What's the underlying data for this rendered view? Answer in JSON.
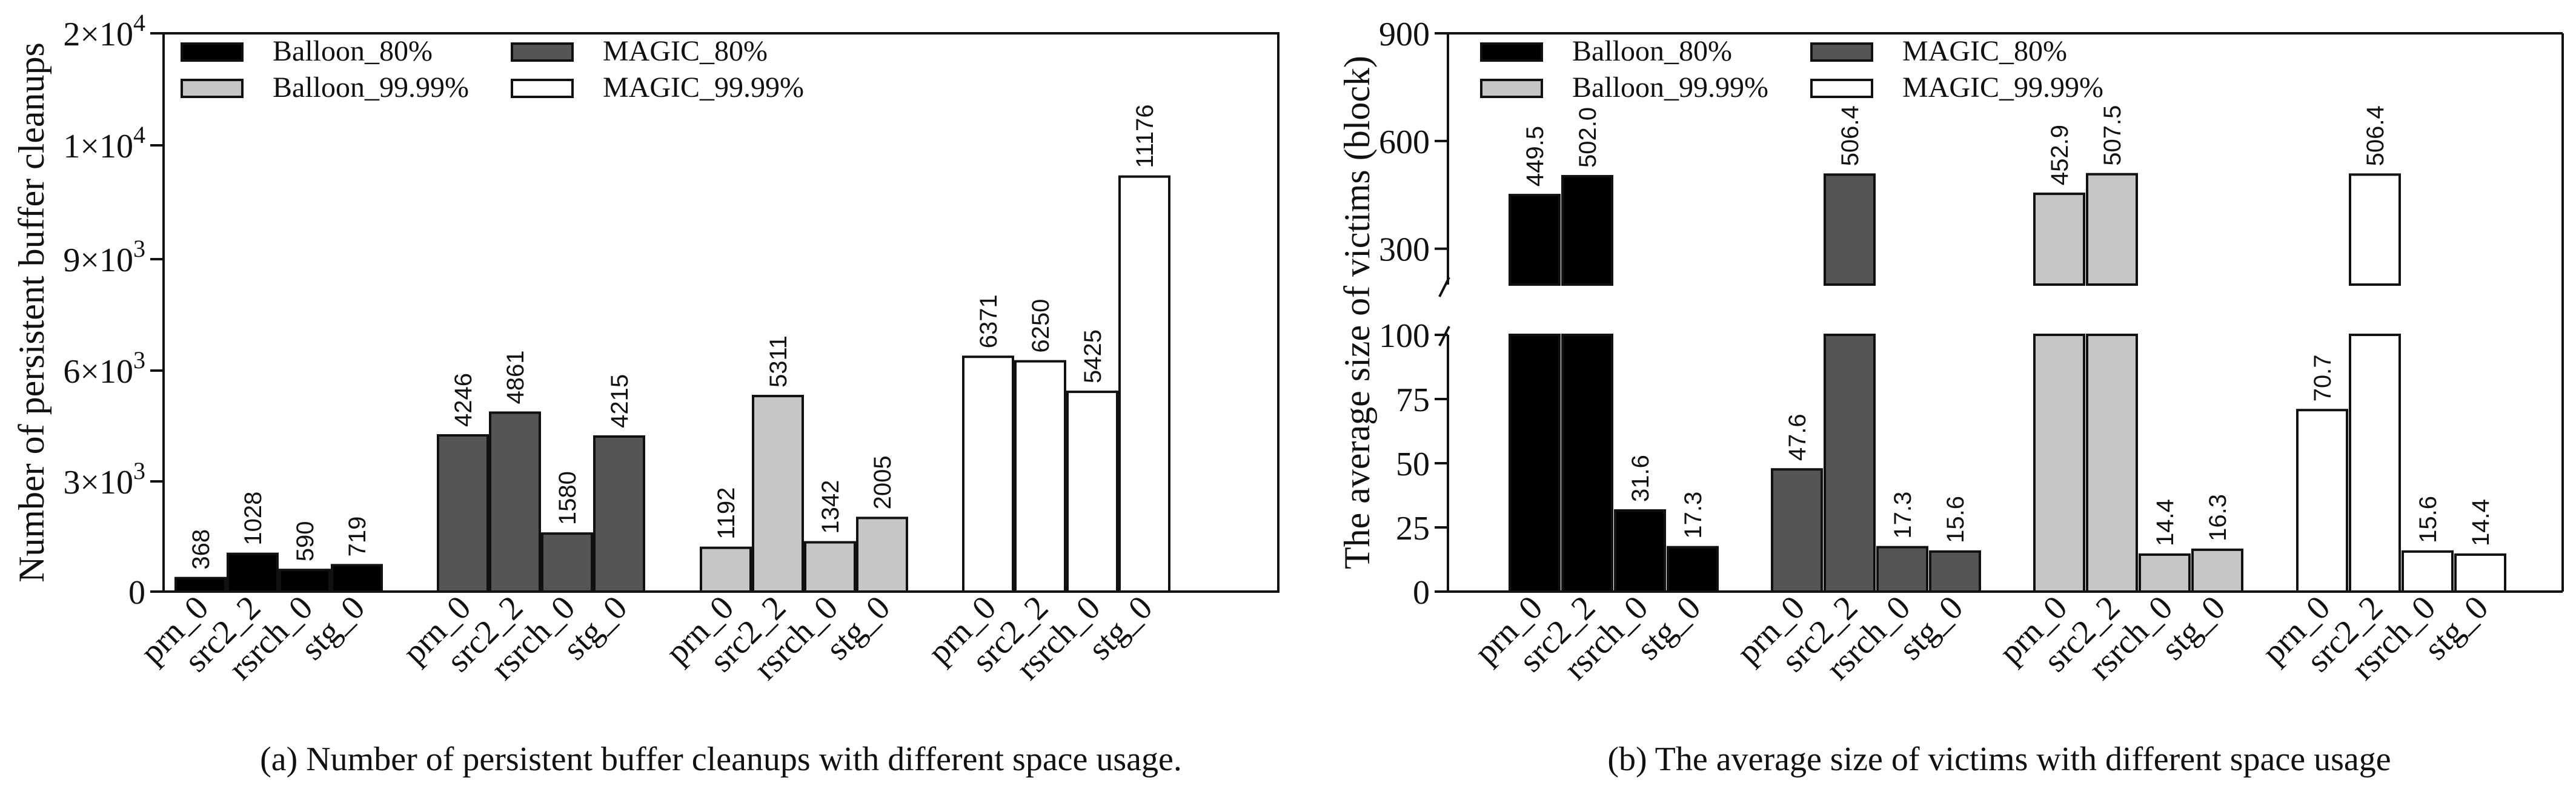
{
  "colors": {
    "Balloon_80%": "#000000",
    "MAGIC_80%": "#555555",
    "Balloon_99.99%": "#c6c6c6",
    "MAGIC_99.99%": "#ffffff"
  },
  "chart_data": [
    {
      "type": "bar",
      "title": "",
      "caption": "(a) Number of persistent buffer cleanups with different space usage.",
      "ylabel": "Number of persistent buffer cleanups",
      "xlabel": "",
      "ylim": [
        0,
        15000
      ],
      "yticks": [
        {
          "value": 0,
          "label": "0",
          "sup": ""
        },
        {
          "value": 3000,
          "label": "3×10",
          "sup": "3"
        },
        {
          "value": 6000,
          "label": "6×10",
          "sup": "3"
        },
        {
          "value": 9000,
          "label": "9×10",
          "sup": "3"
        },
        {
          "value": 12000,
          "label": "1×10",
          "sup": "4"
        },
        {
          "value": 15000,
          "label": "2×10",
          "sup": "4"
        }
      ],
      "break_note": "Upper ticks are labelled 1×10^4 and 2×10^4 on a compressed top segment",
      "legend": [
        "Balloon_80%",
        "MAGIC_80%",
        "Balloon_99.99%",
        "MAGIC_99.99%"
      ],
      "groups": [
        {
          "name": "Balloon_80%",
          "categories": [
            "prn_0",
            "src2_2",
            "rsrch_0",
            "stg_0"
          ],
          "values": [
            368,
            1028,
            590,
            719
          ],
          "labels": [
            "368",
            "1028",
            "590",
            "719"
          ]
        },
        {
          "name": "MAGIC_80%",
          "categories": [
            "prn_0",
            "src2_2",
            "rsrch_0",
            "stg_0"
          ],
          "values": [
            4246,
            4861,
            1580,
            4215
          ],
          "labels": [
            "4246",
            "4861",
            "1580",
            "4215"
          ]
        },
        {
          "name": "Balloon_99.99%",
          "categories": [
            "prn_0",
            "src2_2",
            "rsrch_0",
            "stg_0"
          ],
          "values": [
            1192,
            5311,
            1342,
            2005
          ],
          "labels": [
            "1192",
            "5311",
            "1342",
            "2005"
          ]
        },
        {
          "name": "MAGIC_99.99%",
          "categories": [
            "prn_0",
            "src2_2",
            "rsrch_0",
            "stg_0"
          ],
          "values": [
            6371,
            6250,
            5425,
            11176
          ],
          "labels": [
            "6371",
            "6250",
            "5425",
            "11176"
          ]
        }
      ]
    },
    {
      "type": "bar",
      "title": "",
      "caption": "(b) The average size of victims with different space usage",
      "ylabel": "The average size of victims (block)",
      "xlabel": "",
      "ylim_lower": [
        0,
        100
      ],
      "ylim_upper": [
        200,
        900
      ],
      "yticks_lower": [
        "0",
        "25",
        "50",
        "75",
        "100"
      ],
      "yticks_upper": [
        "300",
        "600",
        "900"
      ],
      "legend": [
        "Balloon_80%",
        "MAGIC_80%",
        "Balloon_99.99%",
        "MAGIC_99.99%"
      ],
      "groups": [
        {
          "name": "Balloon_80%",
          "categories": [
            "prn_0",
            "src2_2",
            "rsrch_0",
            "stg_0"
          ],
          "values": [
            449.5,
            502.0,
            31.6,
            17.3
          ],
          "labels": [
            "449.5",
            "502.0",
            "31.6",
            "17.3"
          ]
        },
        {
          "name": "MAGIC_80%",
          "categories": [
            "prn_0",
            "src2_2",
            "rsrch_0",
            "stg_0"
          ],
          "values": [
            47.6,
            506.4,
            17.3,
            15.6
          ],
          "labels": [
            "47.6",
            "506.4",
            "17.3",
            "15.6"
          ]
        },
        {
          "name": "Balloon_99.99%",
          "categories": [
            "prn_0",
            "src2_2",
            "rsrch_0",
            "stg_0"
          ],
          "values": [
            452.9,
            507.5,
            14.4,
            16.3
          ],
          "labels": [
            "452.9",
            "507.5",
            "14.4",
            "16.3"
          ]
        },
        {
          "name": "MAGIC_99.99%",
          "categories": [
            "prn_0",
            "src2_2",
            "rsrch_0",
            "stg_0"
          ],
          "values": [
            70.7,
            506.4,
            15.6,
            14.4
          ],
          "labels": [
            "70.7",
            "506.4",
            "15.6",
            "14.4"
          ]
        }
      ]
    }
  ]
}
